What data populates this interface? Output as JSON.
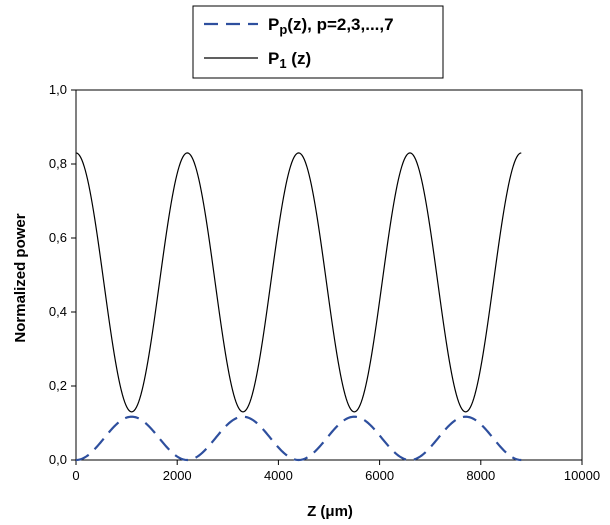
{
  "chart_data": {
    "type": "line",
    "title": "",
    "xlabel": "Z (μm)",
    "ylabel": "Normalized power",
    "xlim": [
      0,
      10000
    ],
    "ylim": [
      0,
      1.0
    ],
    "x_ticks": [
      "0",
      "2000",
      "4000",
      "6000",
      "8000",
      "10000"
    ],
    "y_ticks": [
      "0,0",
      "0,2",
      "0,4",
      "0,6",
      "0,8",
      "1,0"
    ],
    "grid": false,
    "legend_position": "top-center",
    "series": [
      {
        "name": "P1 (z)",
        "legend_main": "P",
        "legend_sub": "1",
        "legend_rest": " (z)",
        "style": "solid",
        "color": "#000000",
        "x": [
          0,
          550,
          1100,
          1650,
          2200,
          2750,
          3300,
          3850,
          4400,
          4950,
          5500,
          6050,
          6600,
          7150,
          7700,
          8250,
          8800
        ],
        "y": [
          0.83,
          0.48,
          0.13,
          0.48,
          0.83,
          0.48,
          0.13,
          0.48,
          0.83,
          0.48,
          0.13,
          0.48,
          0.83,
          0.48,
          0.13,
          0.48,
          0.83
        ]
      },
      {
        "name": "Pp(z), p=2,3,...,7",
        "legend_main": "P",
        "legend_sub": "p",
        "legend_rest": "(z), p=2,3,...,7",
        "style": "dashed",
        "color": "#2e4f9e",
        "x": [
          0,
          550,
          1100,
          1650,
          2200,
          2750,
          3300,
          3850,
          4400,
          4950,
          5500,
          6050,
          6600,
          7150,
          7700,
          8250,
          8800
        ],
        "y": [
          0.0,
          0.058,
          0.117,
          0.058,
          0.0,
          0.058,
          0.117,
          0.058,
          0.0,
          0.058,
          0.117,
          0.058,
          0.0,
          0.058,
          0.117,
          0.058,
          0.0
        ]
      }
    ]
  }
}
